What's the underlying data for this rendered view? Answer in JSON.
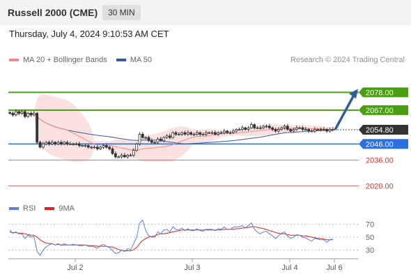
{
  "header": {
    "title": "Russell 2000 (CME)",
    "interval": "30 MIN"
  },
  "datetime": "Thursday, July 4, 2024 9:10:53 AM CET",
  "legend": {
    "items": [
      {
        "label": "MA 20 + Bollinger Bands",
        "color": "#f08a8a"
      },
      {
        "label": "MA 50",
        "color": "#2f5c9a"
      }
    ]
  },
  "credit": "Research © 2024 Trading Central",
  "rsi_legend": {
    "items": [
      {
        "label": "RSI",
        "color": "#5b7fd6"
      },
      {
        "label": "9MA",
        "color": "#e02020"
      }
    ]
  },
  "chart_data": [
    {
      "type": "candlestick",
      "title": "Russell 2000 (CME)",
      "ylim": [
        2012,
        2092
      ],
      "x_ticks": [
        "Jul 2",
        "Jul 3",
        "Jul 4",
        "Jul 6"
      ],
      "current_price": {
        "label": "2054.80",
        "value": 2054.8,
        "color": "#333333"
      },
      "levels": [
        {
          "label": "2078.00",
          "value": 2078,
          "color": "#4a9e12",
          "kind": "resistance"
        },
        {
          "label": "2067.00",
          "value": 2067,
          "color": "#4a9e12",
          "kind": "resistance"
        },
        {
          "label": "2046.00",
          "value": 2046,
          "color": "#2a6fe0",
          "kind": "pivot"
        },
        {
          "label": "2036.00",
          "value": 2036,
          "color": "#e03030",
          "kind": "support"
        },
        {
          "label": "2020.00",
          "value": 2020,
          "color": "#e03030",
          "kind": "support"
        }
      ],
      "projection": {
        "from": 2054.8,
        "to": 2078,
        "color": "#2f5c9a"
      },
      "series": [
        {
          "name": "Price",
          "close": [
            2065,
            2064,
            2066,
            2065,
            2066,
            2063,
            2065,
            2064,
            2065,
            2047,
            2044,
            2046,
            2047,
            2046,
            2047,
            2046,
            2047,
            2046,
            2047,
            2046,
            2046,
            2046,
            2046,
            2045,
            2045,
            2045,
            2044,
            2044,
            2044,
            2043,
            2044,
            2045,
            2044,
            2043,
            2040,
            2038,
            2038,
            2039,
            2038,
            2039,
            2039,
            2042,
            2046,
            2052,
            2050,
            2050,
            2048,
            2047,
            2047,
            2049,
            2048,
            2050,
            2051,
            2050,
            2053,
            2052,
            2052,
            2053,
            2052,
            2053,
            2052,
            2052,
            2053,
            2052,
            2052,
            2053,
            2053,
            2053,
            2052,
            2053,
            2053,
            2054,
            2053,
            2053,
            2054,
            2055,
            2055,
            2056,
            2055,
            2056,
            2058,
            2056,
            2056,
            2056,
            2057,
            2057,
            2056,
            2055,
            2054,
            2055,
            2056,
            2057,
            2055,
            2054,
            2055,
            2056,
            2056,
            2055,
            2055,
            2054,
            2054,
            2055,
            2055,
            2055,
            2055,
            2054,
            2055,
            2055
          ],
          "high": 2070,
          "low": 2037
        },
        {
          "name": "MA 20",
          "color": "#f08a8a"
        },
        {
          "name": "MA 50",
          "color": "#2f5c9a"
        }
      ]
    },
    {
      "type": "line",
      "title": "RSI",
      "ylim": [
        20,
        80
      ],
      "y_ticks": [
        70,
        50,
        30
      ],
      "series": [
        {
          "name": "RSI",
          "color": "#5b7fd6",
          "values": [
            61,
            56,
            58,
            55,
            55,
            48,
            53,
            50,
            51,
            28,
            22,
            30,
            35,
            38,
            40,
            38,
            40,
            37,
            40,
            38,
            38,
            39,
            38,
            37,
            37,
            38,
            36,
            36,
            35,
            33,
            37,
            39,
            36,
            34,
            29,
            25,
            26,
            30,
            28,
            32,
            31,
            40,
            50,
            72,
            76,
            60,
            52,
            50,
            50,
            58,
            55,
            61,
            62,
            58,
            66,
            62,
            61,
            64,
            60,
            63,
            60,
            60,
            63,
            60,
            59,
            62,
            62,
            62,
            60,
            63,
            62,
            66,
            62,
            62,
            65,
            66,
            66,
            68,
            64,
            68,
            72,
            62,
            58,
            55,
            58,
            59,
            55,
            52,
            48,
            52,
            56,
            58,
            52,
            48,
            50,
            54,
            53,
            50,
            49,
            46,
            44,
            48,
            47,
            46,
            46,
            42,
            46,
            47
          ]
        },
        {
          "name": "9MA",
          "color": "#e02020",
          "values": [
            58,
            57,
            57,
            56,
            56,
            55,
            54,
            53,
            53,
            50,
            46,
            43,
            41,
            40,
            40,
            38,
            39,
            38,
            38,
            38,
            38,
            38,
            38,
            38,
            38,
            38,
            37,
            37,
            37,
            36,
            36,
            36,
            36,
            35,
            35,
            33,
            31,
            30,
            29,
            29,
            29,
            31,
            34,
            40,
            45,
            48,
            50,
            51,
            52,
            54,
            55,
            55,
            56,
            57,
            58,
            59,
            60,
            61,
            61,
            61,
            61,
            61,
            61,
            61,
            61,
            61,
            61,
            61,
            61,
            61,
            61,
            62,
            62,
            62,
            62,
            63,
            63,
            64,
            64,
            65,
            66,
            66,
            65,
            64,
            63,
            62,
            60,
            59,
            57,
            56,
            55,
            55,
            54,
            53,
            53,
            53,
            53,
            52,
            52,
            51,
            50,
            49,
            48,
            48,
            47,
            46,
            46,
            46
          ]
        }
      ]
    }
  ]
}
